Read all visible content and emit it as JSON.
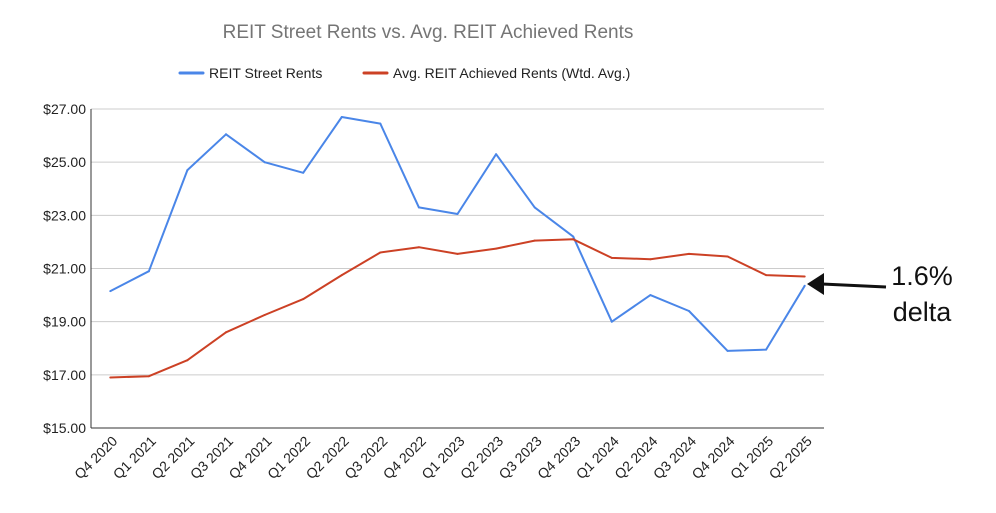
{
  "chart_data": {
    "type": "line",
    "title": "REIT Street Rents vs. Avg. REIT Achieved Rents",
    "xlabel": "",
    "ylabel": "",
    "ylim": [
      15,
      27
    ],
    "yticks": [
      "$15.00",
      "$17.00",
      "$19.00",
      "$21.00",
      "$23.00",
      "$25.00",
      "$27.00"
    ],
    "ytick_values": [
      15,
      17,
      19,
      21,
      23,
      25,
      27
    ],
    "grid": "horizontal",
    "legend": "top",
    "categories": [
      "Q4 2020",
      "Q1 2021",
      "Q2 2021",
      "Q3 2021",
      "Q4 2021",
      "Q1 2022",
      "Q2 2022",
      "Q3 2022",
      "Q4 2022",
      "Q1 2023",
      "Q2 2023",
      "Q3 2023",
      "Q4 2023",
      "Q1 2024",
      "Q2 2024",
      "Q3 2024",
      "Q4 2024",
      "Q1 2025",
      "Q2 2025"
    ],
    "series": [
      {
        "name": "REIT Street Rents",
        "color": "#4a86e8",
        "values": [
          20.15,
          20.9,
          24.7,
          26.05,
          25.0,
          24.6,
          26.7,
          26.45,
          23.3,
          23.05,
          25.3,
          23.3,
          22.2,
          19.0,
          20.0,
          19.4,
          17.9,
          17.95,
          20.35
        ]
      },
      {
        "name": "Avg. REIT Achieved Rents (Wtd. Avg.)",
        "color": "#cc4125",
        "values": [
          16.9,
          16.95,
          17.55,
          18.6,
          19.25,
          19.85,
          20.75,
          21.6,
          21.8,
          21.55,
          21.75,
          22.05,
          22.1,
          21.4,
          21.35,
          21.55,
          21.45,
          20.75,
          20.7
        ]
      }
    ],
    "annotation": {
      "line1": "1.6%",
      "line2": "delta"
    }
  }
}
